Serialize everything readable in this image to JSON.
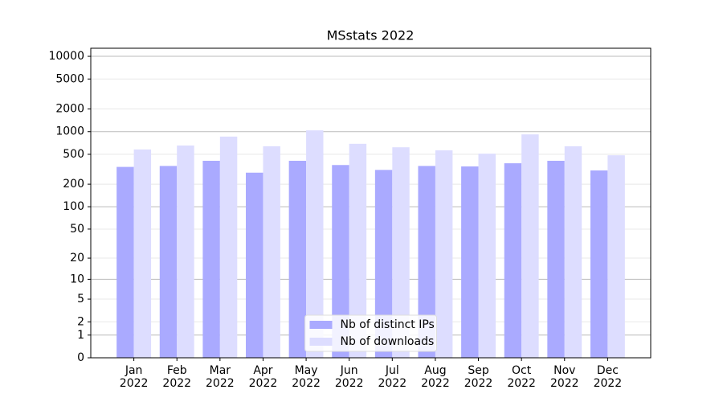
{
  "chart_data": {
    "type": "bar",
    "title": "MSstats 2022",
    "categories": [
      "Jan\n2022",
      "Feb\n2022",
      "Mar\n2022",
      "Apr\n2022",
      "May\n2022",
      "Jun\n2022",
      "Jul\n2022",
      "Aug\n2022",
      "Sep\n2022",
      "Oct\n2022",
      "Nov\n2022",
      "Dec\n2022"
    ],
    "series": [
      {
        "name": "Nb of distinct IPs",
        "color": "#aaaaff",
        "values": [
          340,
          350,
          410,
          285,
          410,
          360,
          310,
          350,
          345,
          380,
          410,
          305
        ]
      },
      {
        "name": "Nb of downloads",
        "color": "#ddddff",
        "values": [
          580,
          655,
          860,
          640,
          1040,
          690,
          620,
          565,
          510,
          920,
          640,
          485
        ]
      }
    ],
    "yscale": "log1p",
    "ylim": [
      0,
      12800
    ],
    "yticks": [
      0,
      1,
      2,
      5,
      10,
      20,
      50,
      100,
      200,
      500,
      1000,
      2000,
      5000,
      10000
    ],
    "grid": true,
    "legend": "lower center"
  }
}
